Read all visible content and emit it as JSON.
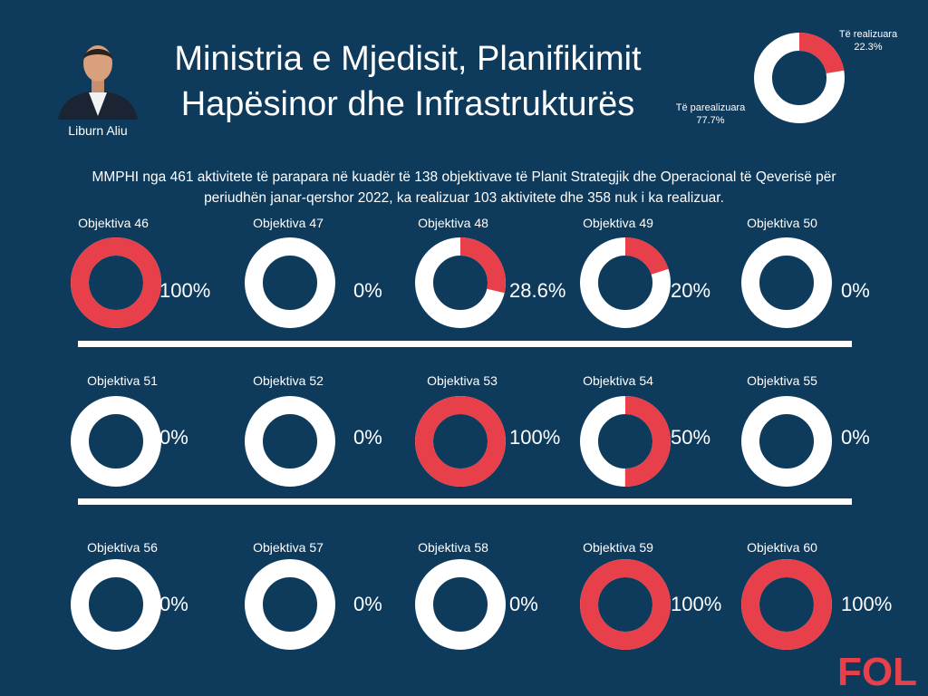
{
  "header": {
    "title_line1": "Ministria e Mjedisit, Planifikimit",
    "title_line2": "Hapësinor dhe Infrastrukturës",
    "person_name": "Liburn Aliu",
    "avatar_icon": "person-portrait-icon"
  },
  "summary": {
    "line1": "MMPHI nga 461 aktivitete të parapara në kuadër të 138 objektivave të Planit Strategjik dhe Operacional të Qeverisë për",
    "line2": "periudhën janar-qershor 2022, ka realizuar 103 aktivitete dhe 358 nuk i ka realizuar."
  },
  "logo": {
    "text": "FOL",
    "color": "#e8404a"
  },
  "colors": {
    "background": "#0e3a5c",
    "realized": "#e8404a",
    "unrealized": "#ffffff"
  },
  "chart_data": [
    {
      "type": "pie",
      "labels": [
        "Të realizuara",
        "Të parealizuara"
      ],
      "values": [
        22.3,
        77.7
      ],
      "value_labels": [
        "22.3%",
        "77.7%"
      ],
      "colors": [
        "#e8404a",
        "#ffffff"
      ]
    },
    {
      "type": "pie",
      "categories": [
        "Objektiva 46",
        "Objektiva 47",
        "Objektiva 48",
        "Objektiva 49",
        "Objektiva 50",
        "Objektiva 51",
        "Objektiva 52",
        "Objektiva 53",
        "Objektiva 54",
        "Objektiva 55",
        "Objektiva 56",
        "Objektiva 57",
        "Objektiva 58",
        "Objektiva 59",
        "Objektiva 60"
      ],
      "values": [
        100,
        0,
        28.6,
        20,
        0,
        0,
        0,
        100,
        50,
        0,
        0,
        0,
        0,
        100,
        100
      ],
      "value_labels": [
        "100%",
        "0%",
        "28.6%",
        "20%",
        "0%",
        "0%",
        "0%",
        "100%",
        "50%",
        "0%",
        "0%",
        "0%",
        "0%",
        "100%",
        "100%"
      ],
      "colors": [
        "#e8404a",
        "#ffffff"
      ]
    }
  ]
}
